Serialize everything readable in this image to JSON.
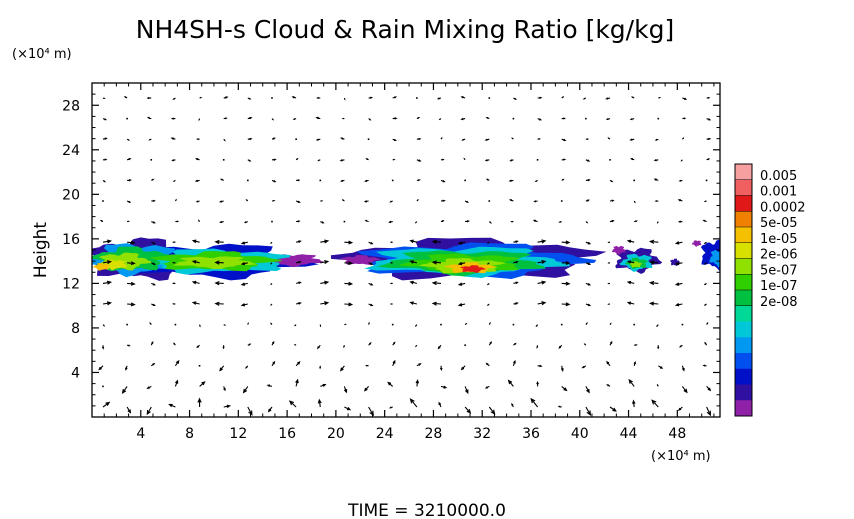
{
  "chart_data": {
    "type": "heatmap",
    "title": "NH4SH-s Cloud & Rain Mixing Ratio [kg/kg]",
    "xlabel": "",
    "x_unit": "(×10⁴ m)",
    "ylabel": "Height",
    "y_unit": "(×10⁴ m)",
    "footer": "TIME = 3210000.0",
    "xlim": [
      0,
      51.5
    ],
    "ylim": [
      0,
      30
    ],
    "xticks": [
      4,
      8,
      12,
      16,
      20,
      24,
      28,
      32,
      36,
      40,
      44,
      48
    ],
    "yticks": [
      4,
      8,
      12,
      16,
      20,
      24,
      28
    ],
    "colorbar": {
      "labels": [
        "0.005",
        "0.001",
        "0.0002",
        "5e-05",
        "1e-05",
        "2e-06",
        "5e-07",
        "1e-07",
        "2e-08"
      ],
      "colors": [
        "#f7a0a0",
        "#f06060",
        "#e01818",
        "#f08000",
        "#f4c000",
        "#d8e000",
        "#90e000",
        "#30d000",
        "#00c040",
        "#00d898",
        "#00c8d8",
        "#0098f0",
        "#0050f0",
        "#0010c8",
        "#3010a0",
        "#9020a8"
      ]
    },
    "cloud_regions": [
      {
        "x_range": [
          0,
          18.5
        ],
        "y_range": [
          12.5,
          16
        ],
        "level": "up to 0.0002"
      },
      {
        "x_range": [
          21,
          40.5
        ],
        "y_range": [
          12.5,
          16
        ],
        "level": "up to 0.001"
      },
      {
        "x_range": [
          43,
          46.5
        ],
        "y_range": [
          13,
          15.5
        ],
        "level": "up to 5e-05"
      },
      {
        "x_range": [
          49.5,
          51.5
        ],
        "y_range": [
          13.5,
          16
        ],
        "level": "up to 5e-07"
      }
    ],
    "overlay": "wind vector arrows"
  }
}
